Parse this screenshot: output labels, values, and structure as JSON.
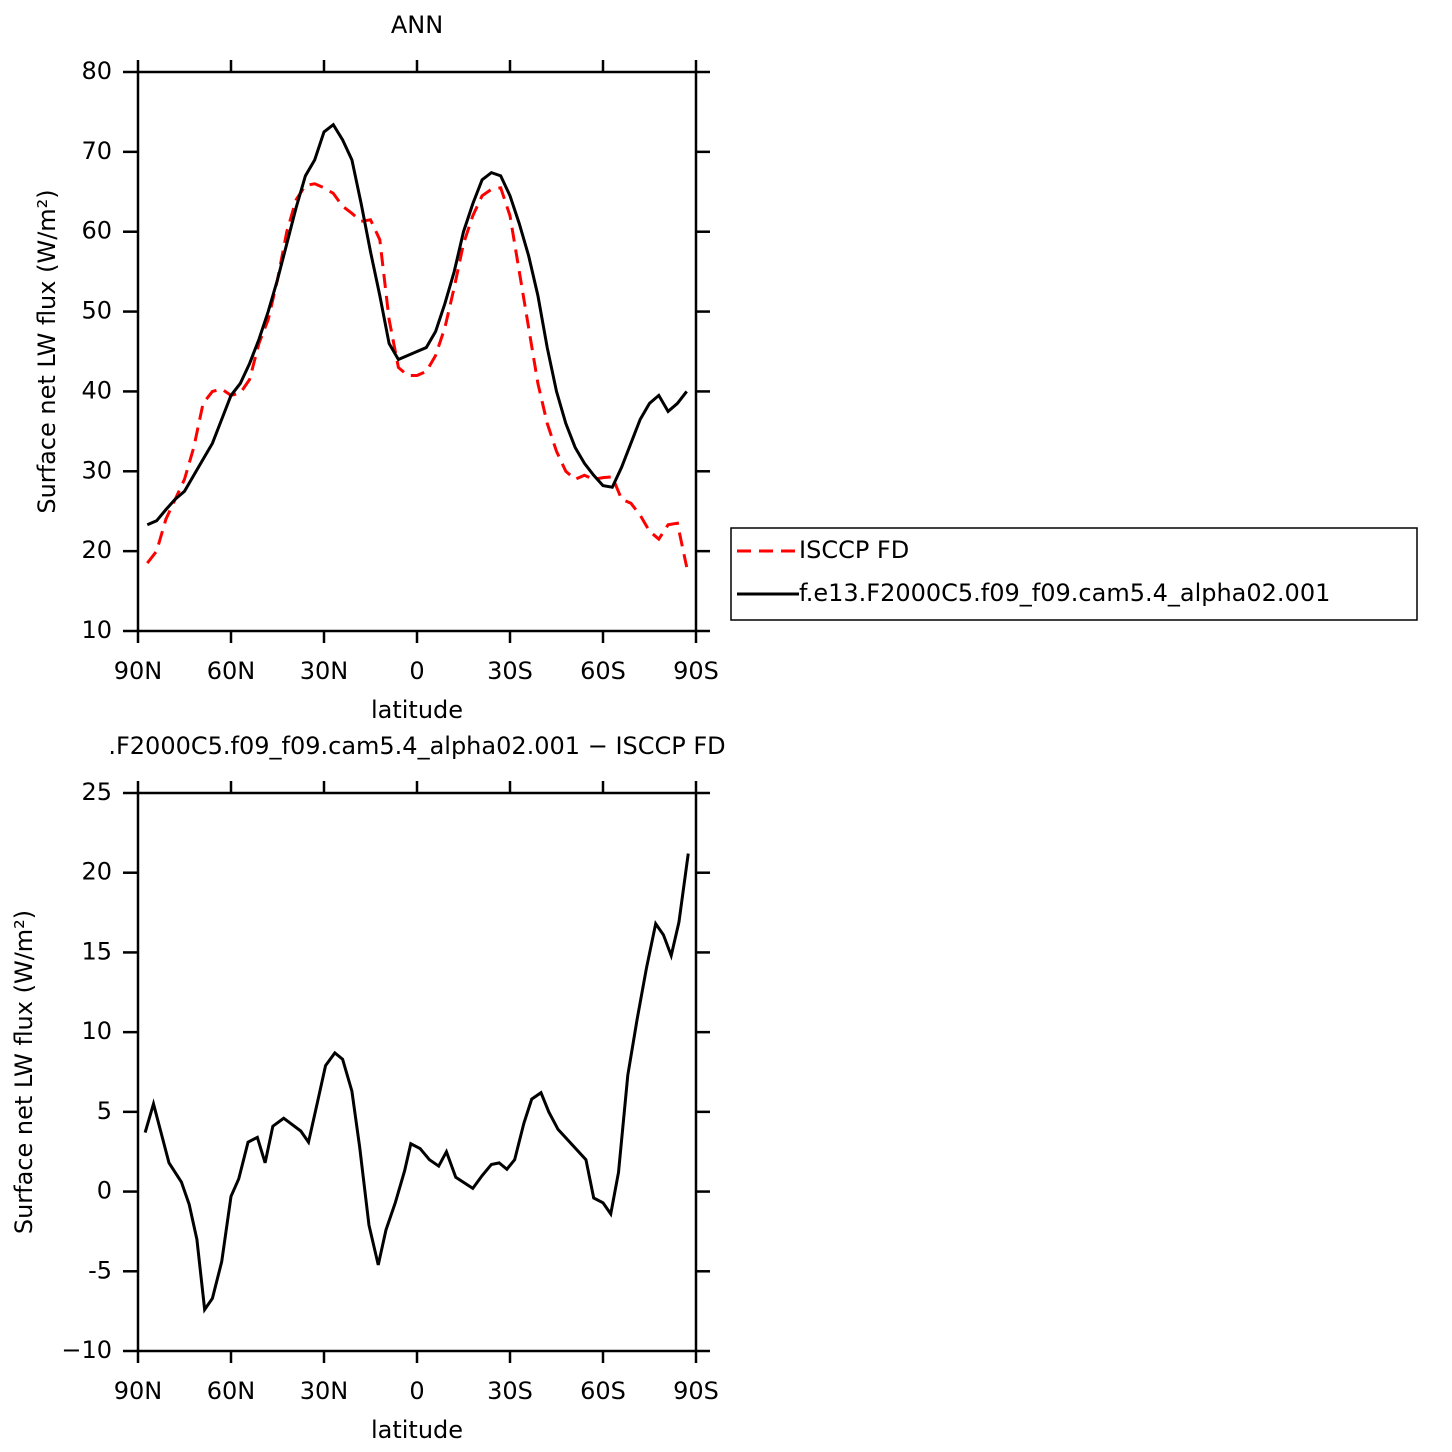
{
  "chart_data": [
    {
      "type": "line",
      "title": "ANN",
      "xlabel": "latitude",
      "ylabel": "Surface net LW flux (W/m²)",
      "x": [
        87,
        84,
        81,
        78,
        75,
        72,
        69,
        66,
        63,
        60,
        57,
        54,
        51,
        48,
        45,
        42,
        39,
        36,
        33,
        30,
        27,
        24,
        21,
        18,
        15,
        12,
        9,
        6,
        3,
        0,
        -3,
        -6,
        -9,
        -12,
        -15,
        -18,
        -21,
        -24,
        -27,
        -30,
        -33,
        -36,
        -39,
        -42,
        -45,
        -48,
        -51,
        -54,
        -57,
        -60,
        -63,
        -66,
        -69,
        -72,
        -75,
        -78,
        -81,
        -84,
        -87
      ],
      "series": [
        {
          "name": "ISCCP FD",
          "color": "#ff0000",
          "dash": "dashed",
          "values": [
            18.5,
            20,
            24,
            26.5,
            29,
            33,
            38.5,
            40,
            40.3,
            39.5,
            39.8,
            41.5,
            46,
            49,
            54,
            60,
            64,
            65.8,
            66,
            65.5,
            64.8,
            63.2,
            62.3,
            61.3,
            61.5,
            59,
            49,
            43,
            42,
            42,
            42.5,
            44.5,
            48,
            53,
            58.5,
            62,
            64.5,
            65.3,
            65.5,
            62,
            55,
            48,
            41,
            36,
            32.5,
            30,
            29,
            29.5,
            29,
            29.2,
            29.3,
            26.5,
            26,
            24.5,
            22.5,
            21.5,
            23.3,
            23.5,
            18
          ]
        },
        {
          "name": "f.e13.F2000C5.f09_f09.cam5.4_alpha02.001",
          "color": "#000000",
          "dash": "solid",
          "values": [
            23.3,
            23.8,
            25.2,
            26.5,
            27.5,
            29.5,
            31.5,
            33.5,
            36.5,
            39.5,
            41,
            43.5,
            46.5,
            50,
            54,
            58.5,
            63,
            67,
            69,
            72.5,
            73.4,
            71.5,
            69,
            63.5,
            57.5,
            52,
            46,
            44,
            44.5,
            45,
            45.5,
            47.5,
            51,
            55,
            60,
            63.5,
            66.5,
            67.4,
            67,
            64.5,
            61,
            57,
            52,
            45.5,
            40,
            36,
            33,
            31,
            29.5,
            28.2,
            28,
            30.5,
            33.5,
            36.5,
            38.5,
            39.5,
            37.5,
            38.5,
            40
          ]
        }
      ],
      "xlim": [
        90,
        -90
      ],
      "xticks": [
        {
          "value": 90,
          "label": "90N"
        },
        {
          "value": 60,
          "label": "60N"
        },
        {
          "value": 30,
          "label": "30N"
        },
        0,
        {
          "value": -30,
          "label": "30S"
        },
        {
          "value": -60,
          "label": "60S"
        },
        {
          "value": -90,
          "label": "90S"
        }
      ],
      "ylim": [
        10,
        80
      ],
      "yticks": [
        10,
        20,
        30,
        40,
        50,
        60,
        70,
        80
      ],
      "grid": false,
      "legend": "outside-right"
    },
    {
      "type": "line",
      "title": ".F2000C5.f09_f09.cam5.4_alpha02.001 − ISCCP FD",
      "xlabel": "latitude",
      "ylabel": "Surface net LW flux (W/m²)",
      "x": [
        87.7,
        85,
        80,
        76,
        73.5,
        71,
        68.5,
        66,
        63,
        60,
        57.5,
        54.5,
        51.5,
        49,
        46.5,
        43,
        37.5,
        35,
        32,
        29.5,
        26.5,
        24,
        21,
        18.5,
        15.5,
        12.5,
        10,
        7,
        4,
        2,
        -1,
        -4,
        -7,
        -9.5,
        -12.5,
        -18,
        -21,
        -24,
        -26.5,
        -29,
        -31.5,
        -34.5,
        -37,
        -40,
        -42.5,
        -45.5,
        -54.5,
        -57,
        -60,
        -62.5,
        -65,
        -68,
        -71,
        -74,
        -77,
        -79.5,
        -82,
        -84.5,
        -87.5
      ],
      "values": [
        3.7,
        5.5,
        1.8,
        0.6,
        -0.8,
        -3,
        -7.4,
        -6.7,
        -4.4,
        -0.3,
        0.8,
        3.1,
        3.4,
        1.8,
        4.1,
        4.6,
        3.8,
        3.1,
        5.7,
        7.9,
        8.7,
        8.3,
        6.3,
        2.8,
        -2.1,
        -4.6,
        -2.4,
        -0.7,
        1.3,
        3,
        2.7,
        2,
        1.6,
        2.5,
        0.9,
        0.2,
        1,
        1.7,
        1.8,
        1.4,
        2,
        4.3,
        5.8,
        6.2,
        5,
        3.9,
        2,
        -0.4,
        -0.7,
        -1.4,
        1.2,
        7.3,
        10.8,
        14,
        16.8,
        16.1,
        14.8,
        16.9,
        21.2
      ],
      "color": "#000000",
      "xlim": [
        90,
        -90
      ],
      "xticks": [
        {
          "value": 90,
          "label": "90N"
        },
        {
          "value": 60,
          "label": "60N"
        },
        {
          "value": 30,
          "label": "30N"
        },
        0,
        {
          "value": -30,
          "label": "30S"
        },
        {
          "value": -60,
          "label": "60S"
        },
        {
          "value": -90,
          "label": "90S"
        }
      ],
      "ylim": [
        -10,
        25
      ],
      "yticks": [
        {
          "value": -10,
          "label": "−10"
        },
        -5,
        0,
        5,
        10,
        15,
        20,
        25
      ],
      "grid": false
    }
  ]
}
